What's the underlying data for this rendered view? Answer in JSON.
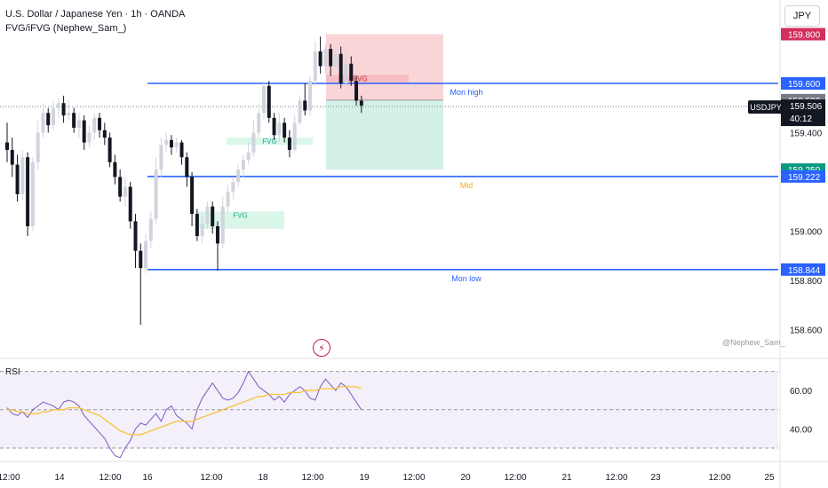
{
  "legend": {
    "title": "U.S. Dollar / Japanese Yen · 1h · OANDA",
    "indicator": "FVG/iFVG (Nephew_Sam_)"
  },
  "currency": "JPY",
  "watermark": "@Nephew_Sam_",
  "rsi_label": "RSI",
  "colors": {
    "up": "#d1d4dc",
    "down": "#131722",
    "level_line": "#2962ff",
    "mid_label": "#f9a825",
    "rsi_line": "#7e57c2",
    "rsi_ma": "#f9c23c",
    "sl_zone": "#f7c7cb",
    "tp_zone": "#cdeee4",
    "fvg_bull": "#d6f5e5"
  },
  "chart_data": [
    {
      "type": "candlestick",
      "title": "U.S. Dollar / Japanese Yen · 1h · OANDA",
      "x_tick_labels": [
        "12:00",
        "14",
        "12:00",
        "16",
        "12:00",
        "18",
        "12:00",
        "19",
        "12:00",
        "20",
        "12:00",
        "21",
        "12:00",
        "23",
        "12:00",
        "25"
      ],
      "y_tick_labels": [
        "159.400",
        "159.000",
        "158.800",
        "158.600"
      ],
      "ylim": [
        158.51,
        159.95
      ],
      "price_labels": [
        {
          "value": "159.800",
          "kind": "sl"
        },
        {
          "value": "159.600",
          "kind": "level"
        },
        {
          "value": "159.532",
          "kind": "gray"
        },
        {
          "value": "159.506",
          "kind": "current",
          "symbol": "USDJPY",
          "countdown": "40:12"
        },
        {
          "value": "159.250",
          "kind": "tp"
        },
        {
          "value": "159.222",
          "kind": "level"
        },
        {
          "value": "158.844",
          "kind": "level"
        }
      ],
      "levels": [
        {
          "name": "Mon high",
          "value": 159.6
        },
        {
          "name": "Mid",
          "value": 159.222
        },
        {
          "name": "Mon low",
          "value": 158.844
        }
      ],
      "position": {
        "entry": 159.532,
        "stop": 159.8,
        "target": 159.25
      },
      "fvg": [
        {
          "label": "FVG",
          "kind": "bear",
          "top": 159.635,
          "bottom": 159.6
        },
        {
          "label": "FVG",
          "kind": "bull",
          "top": 159.38,
          "bottom": 159.35
        },
        {
          "label": "FVG",
          "kind": "bull",
          "top": 159.08,
          "bottom": 159.01
        }
      ],
      "candles": [
        [
          159.36,
          159.33,
          159.44,
          159.28
        ],
        [
          159.33,
          159.27,
          159.38,
          159.22
        ],
        [
          159.27,
          159.15,
          159.31,
          159.12
        ],
        [
          159.15,
          159.3,
          159.33,
          159.13
        ],
        [
          159.3,
          159.02,
          159.32,
          158.98
        ],
        [
          159.02,
          159.28,
          159.3,
          159.0
        ],
        [
          159.28,
          159.4,
          159.45,
          159.25
        ],
        [
          159.4,
          159.48,
          159.52,
          159.38
        ],
        [
          159.48,
          159.43,
          159.5,
          159.4
        ],
        [
          159.43,
          159.5,
          159.53,
          159.41
        ],
        [
          159.5,
          159.52,
          159.54,
          159.46
        ],
        [
          159.52,
          159.47,
          159.55,
          159.44
        ],
        [
          159.47,
          159.48,
          159.53,
          159.45
        ],
        [
          159.48,
          159.42,
          159.5,
          159.4
        ],
        [
          159.42,
          159.45,
          159.48,
          159.38
        ],
        [
          159.45,
          159.36,
          159.47,
          159.33
        ],
        [
          159.36,
          159.4,
          159.43,
          159.34
        ],
        [
          159.4,
          159.46,
          159.48,
          159.37
        ],
        [
          159.46,
          159.41,
          159.48,
          159.38
        ],
        [
          159.41,
          159.38,
          159.44,
          159.35
        ],
        [
          159.38,
          159.28,
          159.4,
          159.26
        ],
        [
          159.28,
          159.22,
          159.31,
          159.19
        ],
        [
          159.22,
          159.14,
          159.25,
          159.12
        ],
        [
          159.14,
          159.18,
          159.22,
          159.1
        ],
        [
          159.18,
          159.04,
          159.2,
          159.01
        ],
        [
          159.04,
          158.92,
          159.07,
          158.85
        ],
        [
          158.92,
          158.85,
          158.95,
          158.62
        ],
        [
          158.85,
          158.96,
          158.99,
          158.83
        ],
        [
          158.96,
          159.05,
          159.08,
          158.93
        ],
        [
          159.05,
          159.25,
          159.3,
          159.03
        ],
        [
          159.25,
          159.35,
          159.38,
          159.22
        ],
        [
          159.35,
          159.37,
          159.4,
          159.32
        ],
        [
          159.37,
          159.34,
          159.39,
          159.31
        ],
        [
          159.34,
          159.36,
          159.38,
          159.32
        ],
        [
          159.36,
          159.3,
          159.37,
          159.27
        ],
        [
          159.3,
          159.22,
          159.32,
          159.18
        ],
        [
          159.22,
          159.07,
          159.24,
          159.02
        ],
        [
          159.07,
          158.98,
          159.09,
          158.96
        ],
        [
          158.98,
          159.03,
          159.06,
          158.95
        ],
        [
          159.03,
          159.1,
          159.12,
          159.01
        ],
        [
          159.1,
          159.02,
          159.12,
          158.99
        ],
        [
          159.02,
          158.95,
          159.04,
          158.84
        ],
        [
          158.95,
          159.1,
          159.14,
          158.93
        ],
        [
          159.1,
          159.16,
          159.19,
          159.08
        ],
        [
          159.16,
          159.2,
          159.22,
          159.13
        ],
        [
          159.2,
          159.25,
          159.27,
          159.18
        ],
        [
          159.25,
          159.29,
          159.31,
          159.22
        ],
        [
          159.29,
          159.32,
          159.36,
          159.27
        ],
        [
          159.32,
          159.4,
          159.45,
          159.3
        ],
        [
          159.4,
          159.48,
          159.52,
          159.38
        ],
        [
          159.48,
          159.59,
          159.61,
          159.45
        ],
        [
          159.59,
          159.46,
          159.61,
          159.44
        ],
        [
          159.46,
          159.39,
          159.48,
          159.37
        ],
        [
          159.39,
          159.44,
          159.48,
          159.36
        ],
        [
          159.44,
          159.38,
          159.46,
          159.36
        ],
        [
          159.38,
          159.33,
          159.41,
          159.3
        ],
        [
          159.33,
          159.44,
          159.47,
          159.32
        ],
        [
          159.44,
          159.53,
          159.55,
          159.43
        ],
        [
          159.53,
          159.49,
          159.6,
          159.47
        ],
        [
          159.49,
          159.61,
          159.63,
          159.47
        ],
        [
          159.61,
          159.73,
          159.77,
          159.59
        ],
        [
          159.73,
          159.67,
          159.79,
          159.64
        ],
        [
          159.67,
          159.74,
          159.76,
          159.64
        ],
        [
          159.74,
          159.67,
          159.76,
          159.63
        ],
        [
          159.67,
          159.72,
          159.74,
          159.66
        ],
        [
          159.72,
          159.6,
          159.75,
          159.58
        ],
        [
          159.6,
          159.68,
          159.73,
          159.59
        ],
        [
          159.68,
          159.61,
          159.71,
          159.59
        ],
        [
          159.61,
          159.53,
          159.63,
          159.51
        ],
        [
          159.53,
          159.51,
          159.55,
          159.48
        ]
      ]
    },
    {
      "type": "line",
      "title": "RSI",
      "y_tick_labels": [
        "60.00",
        "40.00"
      ],
      "ylim": [
        22,
        83
      ],
      "bands": [
        70,
        50,
        30
      ],
      "series": [
        {
          "role": "rsi",
          "values": [
            51,
            48,
            47,
            49,
            46,
            50,
            52,
            54,
            53,
            52,
            50,
            54,
            55,
            54,
            52,
            47,
            44,
            41,
            38,
            35,
            30,
            26,
            25,
            30,
            34,
            40,
            43,
            42,
            45,
            48,
            44,
            50,
            52,
            47,
            45,
            43,
            40,
            50,
            56,
            60,
            64,
            60,
            56,
            55,
            56,
            59,
            64,
            70,
            66,
            62,
            60,
            58,
            55,
            57,
            54,
            58,
            60,
            62,
            60,
            56,
            55,
            62,
            66,
            63,
            60,
            64,
            62,
            58,
            54,
            50
          ]
        },
        {
          "role": "ma",
          "values": [
            50,
            50,
            49,
            49,
            48,
            48,
            48,
            49,
            49,
            50,
            50,
            50,
            51,
            51,
            51,
            50,
            49,
            48,
            47,
            45,
            43,
            41,
            39,
            38,
            37,
            37,
            37,
            38,
            39,
            40,
            41,
            42,
            43,
            44,
            44,
            44,
            44,
            45,
            46,
            47,
            48,
            49,
            50,
            51,
            52,
            53,
            54,
            55,
            56,
            57,
            57,
            58,
            58,
            58,
            58,
            59,
            59,
            59,
            60,
            60,
            60,
            61,
            61,
            61,
            61,
            62,
            62,
            62,
            62,
            61
          ]
        }
      ]
    }
  ]
}
